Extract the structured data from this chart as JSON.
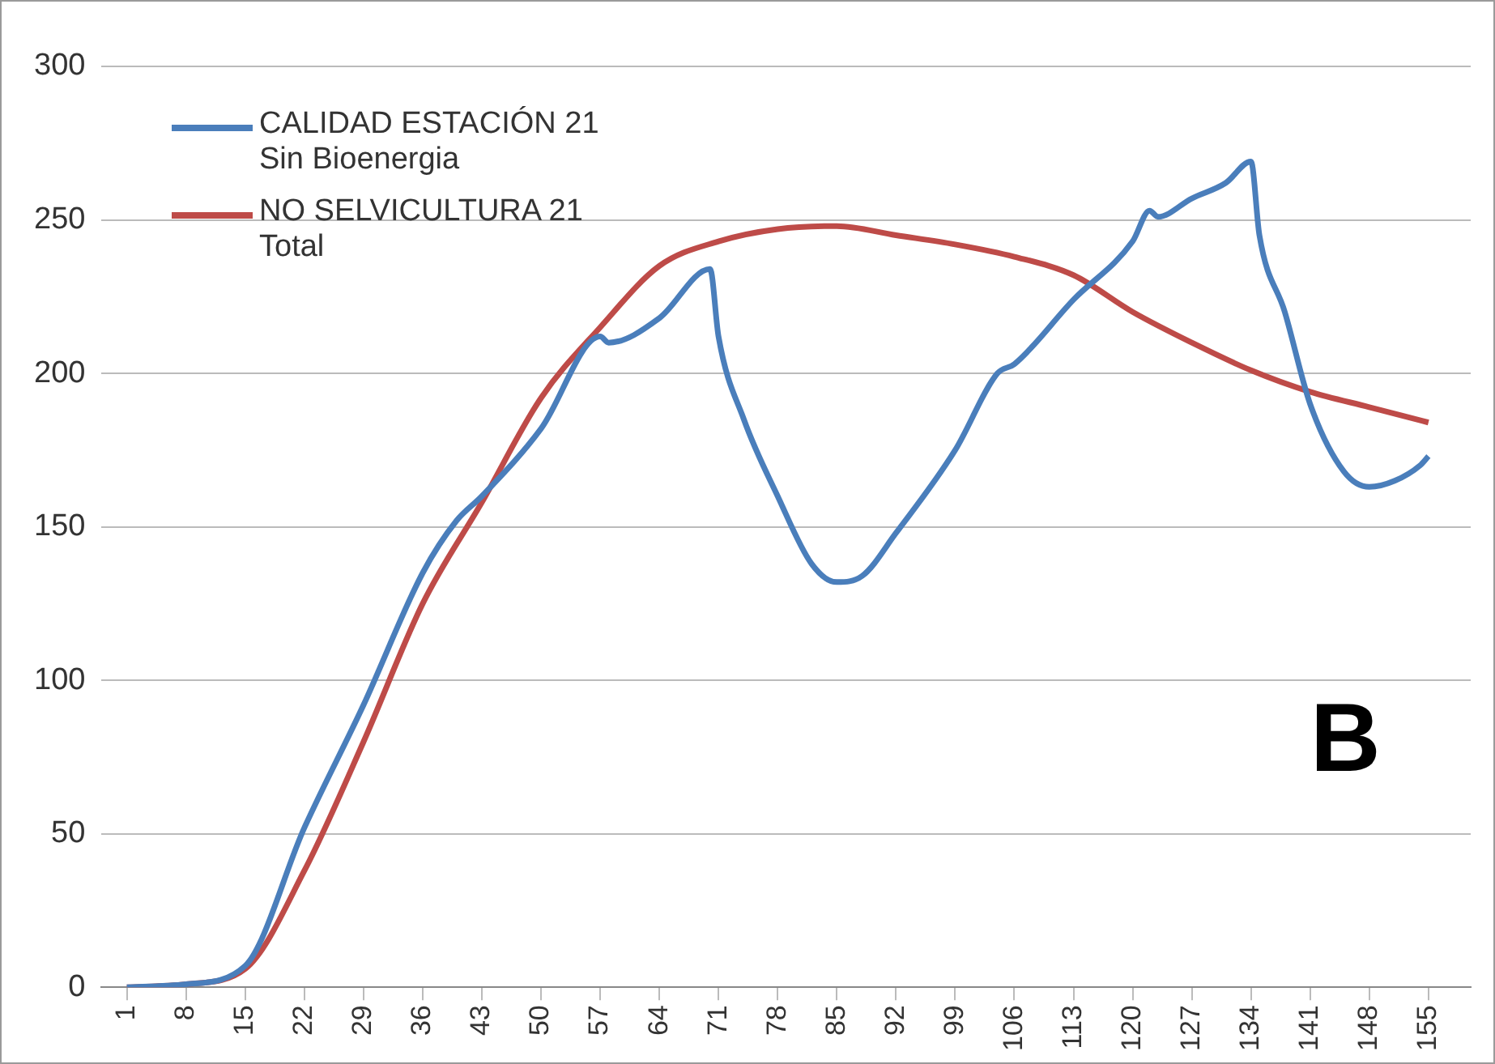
{
  "chart_data": {
    "type": "line",
    "annotations": [
      "B"
    ],
    "legend": "top left",
    "grid": "y",
    "marker": "none",
    "line_style": "solid",
    "xlim": [
      -2,
      160
    ],
    "xticks": [
      1,
      8,
      15,
      22,
      29,
      36,
      43,
      50,
      57,
      64,
      71,
      78,
      85,
      92,
      99,
      106,
      113,
      120,
      127,
      134,
      141,
      148,
      155
    ],
    "ylim": [
      0,
      300
    ],
    "yticks": [
      0,
      50,
      100,
      150,
      200,
      250,
      300
    ],
    "series": [
      {
        "name": "CALIDAD ESTACIÓN 21 Sin Bioenergia",
        "color": "#4a7ebb",
        "x": [
          1,
          8,
          15,
          22,
          29,
          36,
          40,
          43,
          50,
          57,
          58,
          64,
          70,
          71,
          74,
          78,
          82,
          85,
          88,
          92,
          99,
          104,
          106,
          113,
          120,
          122,
          123,
          127,
          131,
          134,
          135,
          138,
          141,
          145,
          148,
          151,
          154,
          155
        ],
        "values": [
          0,
          1,
          7,
          52,
          92,
          135,
          152,
          160,
          182,
          212,
          210,
          218,
          234,
          212,
          185,
          160,
          138,
          132,
          134,
          148,
          175,
          200,
          203,
          224,
          243,
          253,
          251,
          257,
          262,
          269,
          245,
          220,
          190,
          168,
          163,
          165,
          170,
          173
        ]
      },
      {
        "name": "NO SELVICULTURA 21 Total",
        "color": "#be4b48",
        "x": [
          1,
          8,
          15,
          22,
          29,
          36,
          43,
          50,
          57,
          64,
          71,
          78,
          85,
          92,
          99,
          106,
          113,
          120,
          127,
          134,
          141,
          148,
          155
        ],
        "values": [
          0,
          1,
          6,
          38,
          80,
          125,
          158,
          192,
          215,
          235,
          243,
          247,
          248,
          245,
          242,
          238,
          232,
          220,
          210,
          201,
          194,
          189,
          184
        ]
      }
    ]
  }
}
